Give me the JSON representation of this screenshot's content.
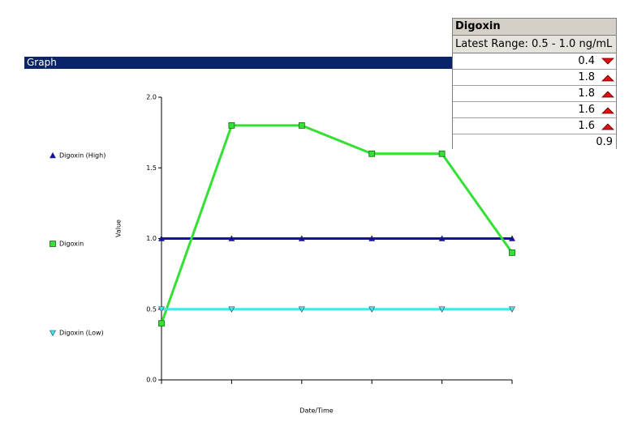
{
  "window": {
    "title": "Graph"
  },
  "panel": {
    "title": "Digoxin",
    "range": "Latest Range: 0.5 - 1.0 ng/mL",
    "rows": [
      {
        "value": 0.4,
        "flag": "low"
      },
      {
        "value": 1.8,
        "flag": "high"
      },
      {
        "value": 1.8,
        "flag": "high"
      },
      {
        "value": 1.6,
        "flag": "high"
      },
      {
        "value": 1.6,
        "flag": "high"
      },
      {
        "value": 0.9
      }
    ]
  },
  "chart_data": {
    "type": "line",
    "xlabel": "Date/Time",
    "ylabel": "Value",
    "categories": [
      null,
      null,
      null,
      null,
      null,
      null
    ],
    "series": [
      {
        "name": "Digoxin (High)",
        "color": "#1010b0",
        "marker": "triangle-up",
        "values": [
          1,
          1,
          1,
          1,
          1,
          1
        ]
      },
      {
        "name": "Digoxin",
        "color": "#33e033",
        "marker": "square",
        "values": [
          0.4,
          1.8,
          1.8,
          1.6,
          1.6,
          0.9
        ]
      },
      {
        "name": "Digoxin (Low)",
        "color": "#40e8e8",
        "marker": "triangle-down",
        "values": [
          0.5,
          0.5,
          0.5,
          0.5,
          0.5,
          0.5
        ]
      }
    ],
    "ylim": [
      0,
      2
    ],
    "yticks": [
      {
        "value": 0,
        "label": "0.0"
      },
      0.5,
      {
        "value": 1,
        "label": "1.0"
      },
      1.5,
      {
        "value": 2,
        "label": "2.0"
      }
    ]
  }
}
